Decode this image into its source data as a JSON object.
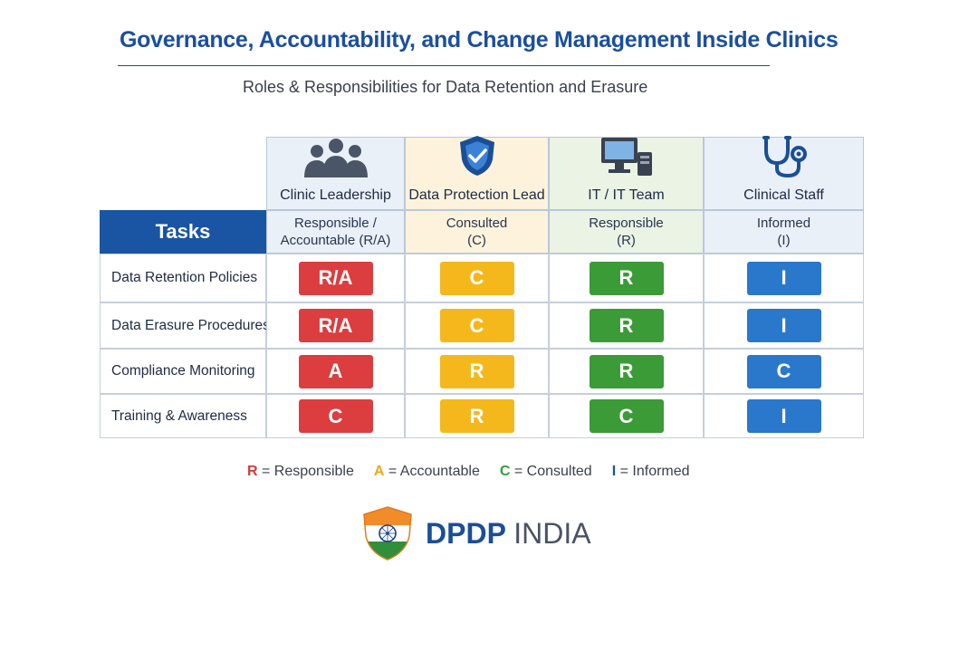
{
  "title": "Governance, Accountability, and Change Management Inside Clinics",
  "subtitle": "Roles & Responsibilities for Data Retention and Erasure",
  "tasks_header": "Tasks",
  "roles": [
    {
      "name": "Clinic Leadership",
      "icon": "people-group-icon",
      "role_line1": "Responsible /",
      "role_line2": "Accountable (R/A)",
      "header_bg": "#e9f0f8"
    },
    {
      "name": "Data Protection Lead",
      "icon": "shield-check-icon",
      "role_line1": "Consulted",
      "role_line2": "(C)",
      "header_bg": "#fdf3dc"
    },
    {
      "name": "IT / IT Team",
      "icon": "computer-icon",
      "role_line1": "Responsible",
      "role_line2": "(R)",
      "header_bg": "#eaf3e4"
    },
    {
      "name": "Clinical Staff",
      "icon": "stethoscope-icon",
      "role_line1": "Informed",
      "role_line2": "(I)",
      "header_bg": "#e9f0f8"
    }
  ],
  "rows": [
    {
      "task": "Data Retention Policies",
      "cells": [
        "R/A",
        "C",
        "R",
        "I"
      ]
    },
    {
      "task": "Data Erasure Procedures",
      "cells": [
        "R/A",
        "C",
        "R",
        "I"
      ]
    },
    {
      "task": "Compliance Monitoring",
      "cells": [
        "A",
        "R",
        "R",
        "C"
      ]
    },
    {
      "task": "Training & Awareness",
      "cells": [
        "C",
        "R",
        "C",
        "I"
      ]
    }
  ],
  "column_colors": [
    "#dc3d3f",
    "#f5b81c",
    "#3a9b37",
    "#2a78cc"
  ],
  "legend": [
    {
      "key": "R",
      "text": "= Responsible",
      "color": "#d13a3c"
    },
    {
      "key": "A",
      "text": "= Accountable",
      "color": "#f0a81a"
    },
    {
      "key": "C",
      "text": "= Consulted",
      "color": "#3a9b37"
    },
    {
      "key": "I",
      "text": "= Informed",
      "color": "#1a55a3"
    }
  ],
  "logo": {
    "brand_bold": "DPDP",
    "brand_rest": "INDIA",
    "icon": "india-flag-shield-icon"
  }
}
